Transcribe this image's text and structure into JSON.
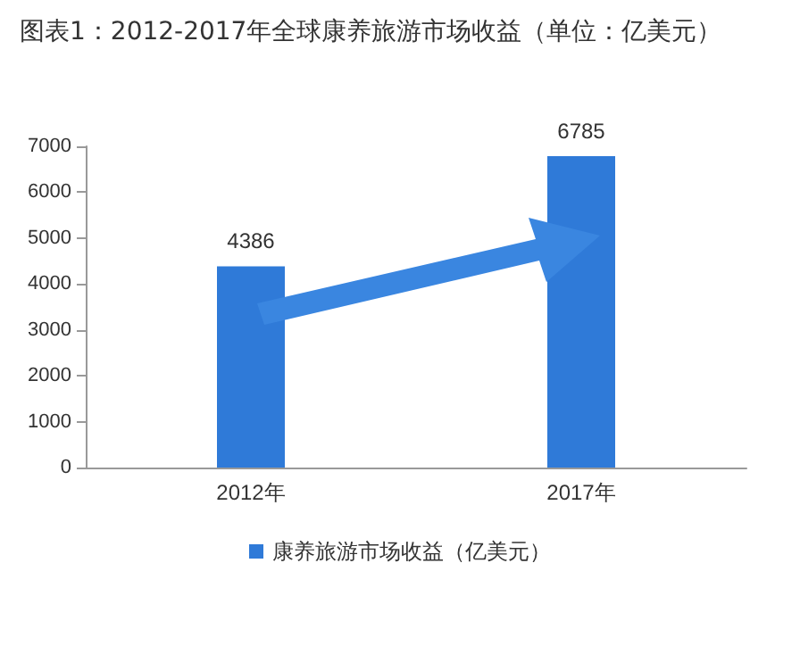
{
  "chart_data": {
    "type": "bar",
    "title": "图表1：2012-2017年全球康养旅游市场收益（单位：亿美元）",
    "categories": [
      "2012年",
      "2017年"
    ],
    "series": [
      {
        "name": "康养旅游市场收益（亿美元）",
        "color": "#2f7ad8",
        "values": [
          4386,
          6785
        ]
      }
    ],
    "ylim": [
      0,
      7000
    ],
    "yticks": [
      0,
      1000,
      2000,
      3000,
      4000,
      5000,
      6000,
      7000
    ],
    "grid": false,
    "legend": "bottom",
    "data_labels": true
  }
}
